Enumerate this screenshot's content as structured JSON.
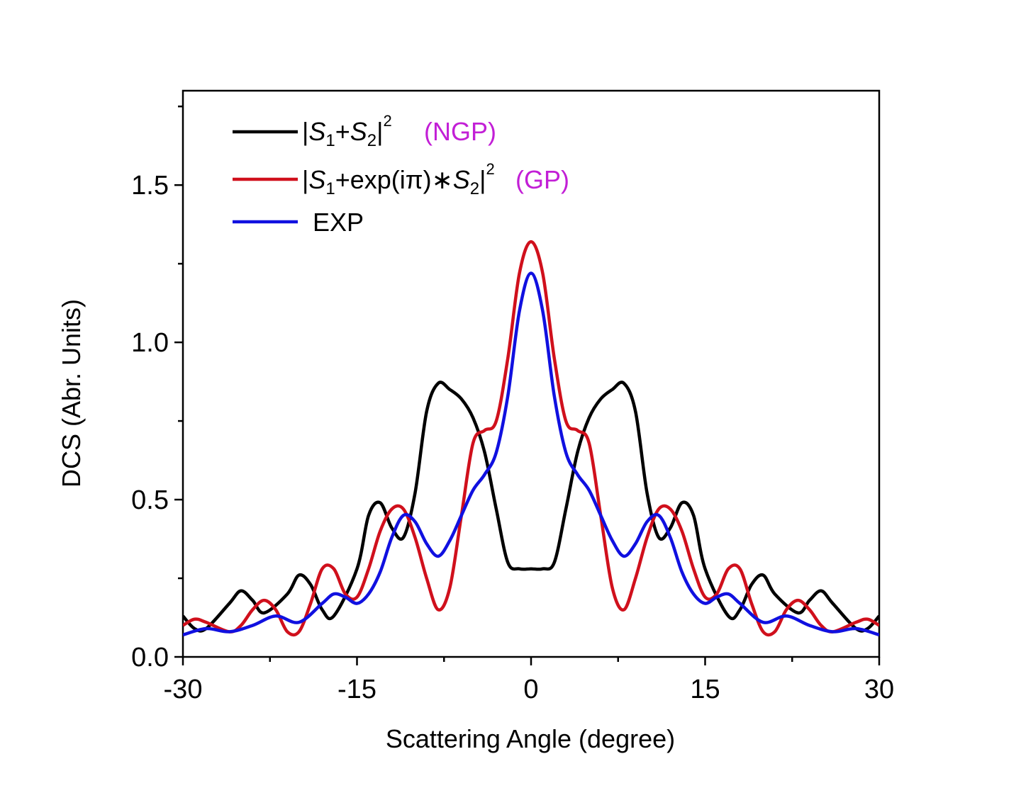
{
  "chart_data": {
    "type": "line",
    "title": "",
    "xlabel": "Scattering Angle (degree)",
    "ylabel": "DCS (Abr. Units)",
    "xlim": [
      -30,
      30
    ],
    "ylim": [
      0,
      1.8
    ],
    "xticks": [
      -30,
      -15,
      0,
      15,
      30
    ],
    "xtick_labels": [
      "-30",
      "-15",
      "0",
      "15",
      "30"
    ],
    "yticks": [
      0,
      0.5,
      1.0,
      1.5
    ],
    "ytick_labels": [
      "0.0",
      "0.5",
      "1.0",
      "1.5"
    ],
    "grid": false,
    "legend_position": "top-left",
    "series": [
      {
        "name": "|S1+S2|^2 (NGP)",
        "legend": {
          "prefix": "|",
          "s1": "S",
          "s1_sub": "1",
          "mid": "+",
          "s2": "S",
          "s2_sub": "2",
          "suffix": "|",
          "sup": "2",
          "tag": "(NGP)"
        },
        "color": "#000000",
        "x": [
          -30,
          -29,
          -28,
          -26,
          -25,
          -24,
          -23,
          -21,
          -20,
          -19,
          -18,
          -17,
          -15,
          -14,
          -13,
          -12,
          -11,
          -10,
          -9,
          -8,
          -7,
          -6,
          -5,
          -4,
          -3,
          -2,
          -1,
          0,
          1,
          2,
          3,
          4,
          5,
          6,
          7,
          8,
          9,
          10,
          11,
          12,
          13,
          14,
          15,
          17,
          18,
          19,
          20,
          21,
          23,
          24,
          25,
          26,
          28,
          29,
          30
        ],
        "y": [
          0.13,
          0.09,
          0.09,
          0.17,
          0.21,
          0.18,
          0.14,
          0.2,
          0.26,
          0.23,
          0.15,
          0.13,
          0.28,
          0.45,
          0.49,
          0.41,
          0.38,
          0.52,
          0.78,
          0.87,
          0.85,
          0.82,
          0.76,
          0.65,
          0.47,
          0.3,
          0.28,
          0.28,
          0.28,
          0.3,
          0.47,
          0.65,
          0.76,
          0.82,
          0.85,
          0.87,
          0.78,
          0.52,
          0.38,
          0.41,
          0.49,
          0.45,
          0.28,
          0.13,
          0.15,
          0.23,
          0.26,
          0.2,
          0.14,
          0.18,
          0.21,
          0.17,
          0.09,
          0.09,
          0.13
        ]
      },
      {
        "name": "|S1+exp(iπ)∗S2|^2 (GP)",
        "legend": {
          "prefix": "|",
          "s1": "S",
          "s1_sub": "1",
          "mid": "+exp(iπ)∗",
          "s2": "S",
          "s2_sub": "2",
          "suffix": "|",
          "sup": "2",
          "tag": "(GP)"
        },
        "color": "#d0101c",
        "x": [
          -30,
          -29,
          -28,
          -26,
          -25,
          -24,
          -23,
          -22,
          -21,
          -20,
          -19,
          -18,
          -17,
          -16,
          -15,
          -14,
          -13,
          -12,
          -11,
          -10,
          -9,
          -8,
          -7,
          -6,
          -5,
          -4,
          -3,
          -2,
          -1,
          0,
          1,
          2,
          3,
          4,
          5,
          6,
          7,
          8,
          9,
          10,
          11,
          12,
          13,
          14,
          15,
          16,
          17,
          18,
          19,
          20,
          21,
          22,
          23,
          24,
          25,
          26,
          28,
          29,
          30
        ],
        "y": [
          0.1,
          0.12,
          0.11,
          0.08,
          0.1,
          0.15,
          0.18,
          0.15,
          0.08,
          0.08,
          0.17,
          0.28,
          0.28,
          0.2,
          0.19,
          0.28,
          0.4,
          0.47,
          0.47,
          0.38,
          0.25,
          0.15,
          0.22,
          0.45,
          0.68,
          0.72,
          0.75,
          0.95,
          1.22,
          1.32,
          1.22,
          0.95,
          0.75,
          0.72,
          0.68,
          0.45,
          0.22,
          0.15,
          0.25,
          0.38,
          0.47,
          0.47,
          0.4,
          0.28,
          0.19,
          0.2,
          0.28,
          0.28,
          0.17,
          0.08,
          0.08,
          0.15,
          0.18,
          0.15,
          0.1,
          0.08,
          0.11,
          0.12,
          0.1
        ]
      },
      {
        "name": "EXP",
        "legend": {
          "text": "EXP"
        },
        "color": "#1010e0",
        "x": [
          -30,
          -28,
          -26,
          -24,
          -22,
          -20,
          -18,
          -17,
          -16,
          -15,
          -14,
          -13,
          -12,
          -11,
          -10,
          -9,
          -8,
          -7,
          -6,
          -5,
          -4,
          -3,
          -2,
          -1,
          0,
          1,
          2,
          3,
          4,
          5,
          6,
          7,
          8,
          9,
          10,
          11,
          12,
          13,
          14,
          15,
          16,
          17,
          18,
          20,
          22,
          24,
          26,
          28,
          30
        ],
        "y": [
          0.07,
          0.09,
          0.08,
          0.1,
          0.13,
          0.11,
          0.17,
          0.2,
          0.19,
          0.17,
          0.2,
          0.27,
          0.38,
          0.45,
          0.43,
          0.36,
          0.32,
          0.37,
          0.45,
          0.53,
          0.58,
          0.65,
          0.83,
          1.1,
          1.22,
          1.1,
          0.83,
          0.65,
          0.58,
          0.53,
          0.45,
          0.37,
          0.32,
          0.36,
          0.43,
          0.45,
          0.38,
          0.27,
          0.2,
          0.17,
          0.19,
          0.2,
          0.17,
          0.11,
          0.13,
          0.1,
          0.08,
          0.09,
          0.07
        ]
      }
    ]
  },
  "colors": {
    "legend_tag": "#c21fd6",
    "axis": "#000000"
  }
}
